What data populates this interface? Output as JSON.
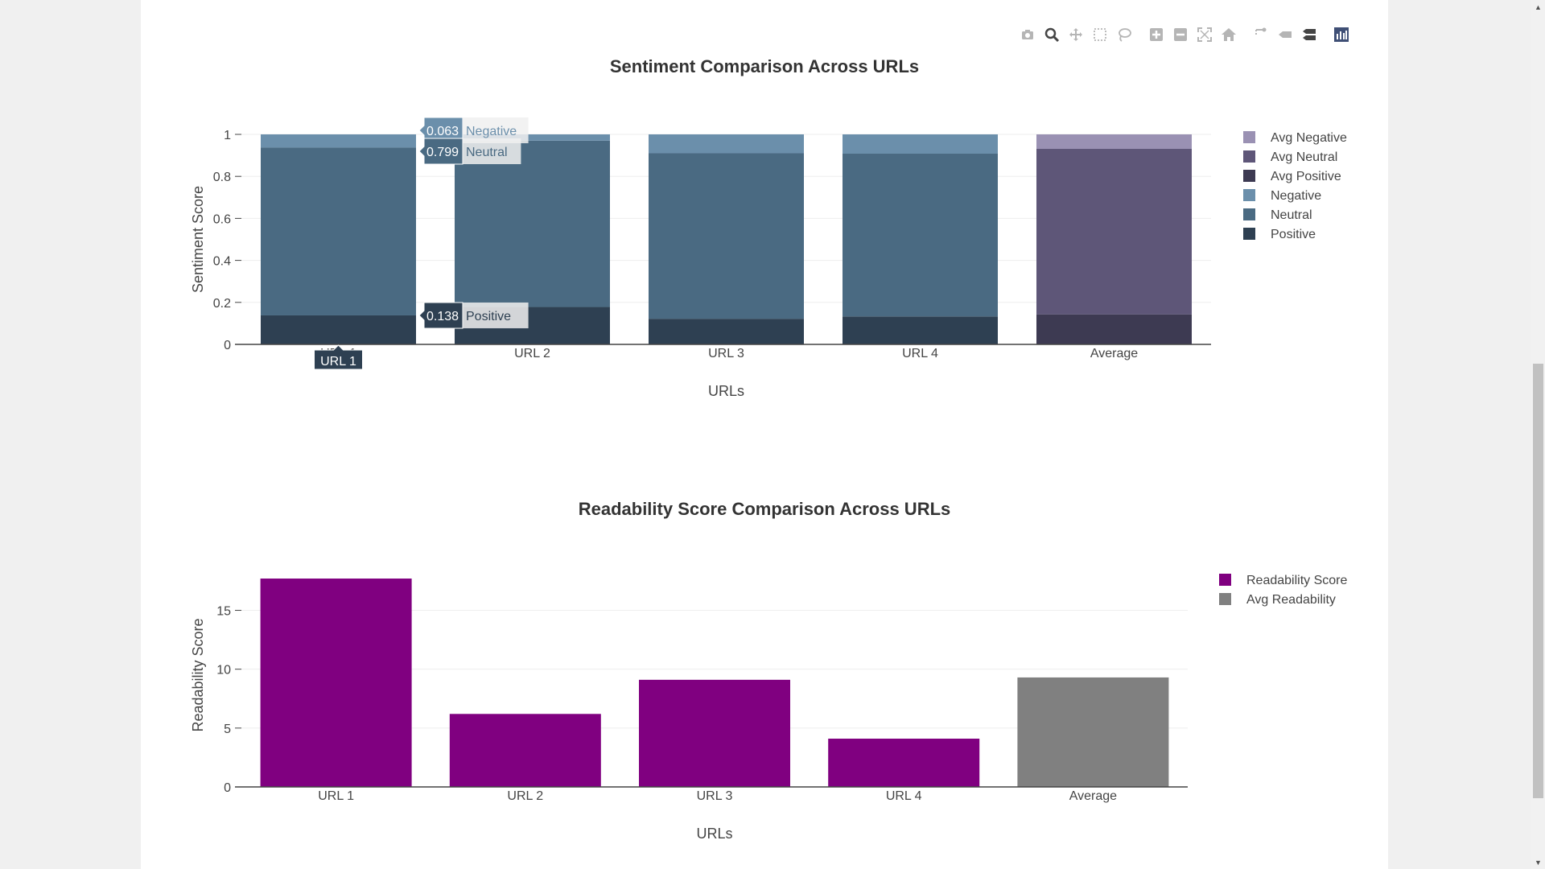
{
  "chart_data": [
    {
      "type": "bar",
      "stacked": true,
      "title": "Sentiment Comparison Across URLs",
      "xlabel": "URLs",
      "ylabel": "Sentiment Score",
      "categories": [
        "URL 1",
        "URL 2",
        "URL 3",
        "URL 4",
        "Average"
      ],
      "ylim": [
        0,
        1
      ],
      "yticks": [
        0,
        0.2,
        0.4,
        0.6,
        0.8,
        1
      ],
      "ytick_labels": [
        "0",
        "0.2",
        "0.4",
        "0.6",
        "0.8",
        "1"
      ],
      "grid": true,
      "series": [
        {
          "name": "Positive",
          "color": "#2e4052",
          "values": [
            0.138,
            0.178,
            0.122,
            0.133,
            null
          ]
        },
        {
          "name": "Neutral",
          "color": "#4a6a82",
          "values": [
            0.799,
            0.792,
            0.788,
            0.775,
            null
          ]
        },
        {
          "name": "Negative",
          "color": "#6b8fab",
          "values": [
            0.063,
            0.03,
            0.09,
            0.092,
            null
          ]
        },
        {
          "name": "Avg Positive",
          "color": "#3d3a52",
          "values": [
            null,
            null,
            null,
            null,
            0.143
          ]
        },
        {
          "name": "Avg Neutral",
          "color": "#5e5678",
          "values": [
            null,
            null,
            null,
            null,
            0.788
          ]
        },
        {
          "name": "Avg Negative",
          "color": "#9a91b3",
          "values": [
            null,
            null,
            null,
            null,
            0.069
          ]
        }
      ],
      "legend": [
        "Avg Negative",
        "Avg Neutral",
        "Avg Positive",
        "Negative",
        "Neutral",
        "Positive"
      ],
      "legend_position": "right",
      "hover": {
        "category": "URL 1",
        "labels": [
          {
            "series": "Negative",
            "value": "0.063"
          },
          {
            "series": "Neutral",
            "value": "0.799"
          },
          {
            "series": "Positive",
            "value": "0.138"
          }
        ]
      }
    },
    {
      "type": "bar",
      "title": "Readability Score Comparison Across URLs",
      "xlabel": "URLs",
      "ylabel": "Readability Score",
      "categories": [
        "URL 1",
        "URL 2",
        "URL 3",
        "URL 4",
        "Average"
      ],
      "ylim": [
        0,
        19
      ],
      "yticks": [
        0,
        5,
        10,
        15
      ],
      "ytick_labels": [
        "0",
        "5",
        "10",
        "15"
      ],
      "grid": true,
      "series": [
        {
          "name": "Readability Score",
          "color": "#800080",
          "values": [
            17.7,
            6.2,
            9.1,
            4.1,
            null
          ]
        },
        {
          "name": "Avg Readability",
          "color": "#808080",
          "values": [
            null,
            null,
            null,
            null,
            9.3
          ]
        }
      ],
      "legend": [
        "Readability Score",
        "Avg Readability"
      ],
      "legend_position": "right"
    }
  ],
  "modebar": [
    "camera-icon",
    "zoom-icon",
    "pan-icon",
    "box-select-icon",
    "lasso-icon",
    "zoom-in-icon",
    "zoom-out-icon",
    "autoscale-icon",
    "reset-axes-icon",
    "spike-lines-icon",
    "hover-closest-icon",
    "hover-compare-icon",
    "plotly-logo-icon"
  ]
}
